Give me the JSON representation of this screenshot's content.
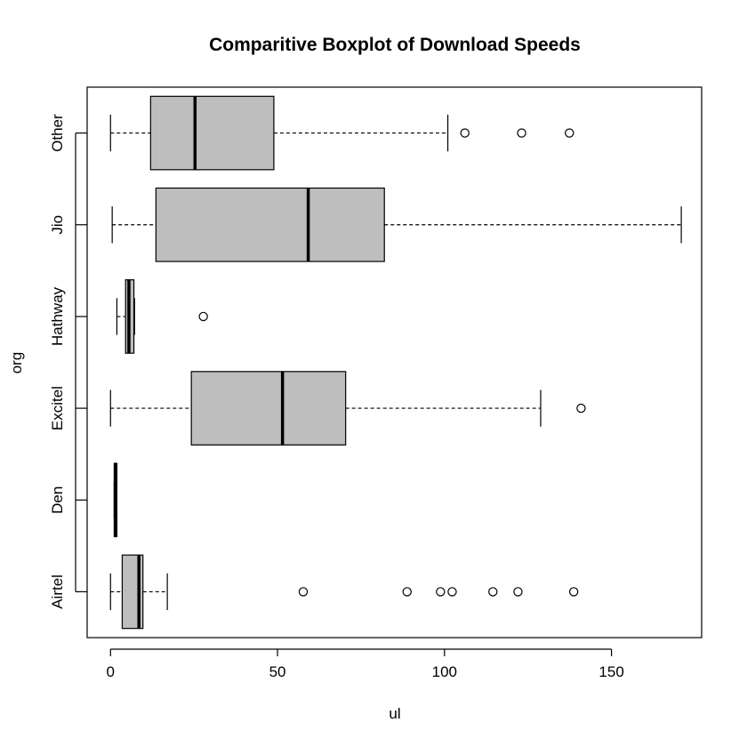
{
  "chart_data": {
    "type": "boxplot",
    "orientation": "horizontal",
    "title": "Comparitive Boxplot of Download Speeds",
    "xlabel": "ul",
    "ylabel": "org",
    "xlim": [
      -7,
      177
    ],
    "xticks": [
      0,
      50,
      100,
      150
    ],
    "colors": {
      "box_fill": "#bebebe",
      "stroke": "#000000",
      "background": "#ffffff"
    },
    "categories": [
      "Airtel",
      "Den",
      "Excitel",
      "Hathway",
      "Jio",
      "Other"
    ],
    "boxes": [
      {
        "name": "Airtel",
        "whisker_low": 0,
        "q1": 3.5,
        "median": 8.5,
        "q3": 9.7,
        "whisker_high": 17,
        "outliers": [
          57.7,
          88.8,
          98.8,
          102.3,
          114.5,
          122,
          138.7
        ]
      },
      {
        "name": "Den",
        "whisker_low": 1.1,
        "q1": 1.1,
        "median": 1.5,
        "q3": 1.9,
        "whisker_high": 1.9,
        "outliers": []
      },
      {
        "name": "Excitel",
        "whisker_low": 0,
        "q1": 24.2,
        "median": 51.5,
        "q3": 70.4,
        "whisker_high": 128.8,
        "outliers": [
          140.9
        ]
      },
      {
        "name": "Hathway",
        "whisker_low": 1.9,
        "q1": 4.5,
        "median": 5.5,
        "q3": 7,
        "whisker_high": 7.2,
        "outliers": [
          27.8
        ]
      },
      {
        "name": "Jio",
        "whisker_low": 0.5,
        "q1": 13.6,
        "median": 59.2,
        "q3": 82,
        "whisker_high": 170.9,
        "outliers": []
      },
      {
        "name": "Other",
        "whisker_low": 0,
        "q1": 12,
        "median": 25.3,
        "q3": 48.9,
        "whisker_high": 101,
        "outliers": [
          106.1,
          123.1,
          137.4
        ]
      }
    ]
  }
}
